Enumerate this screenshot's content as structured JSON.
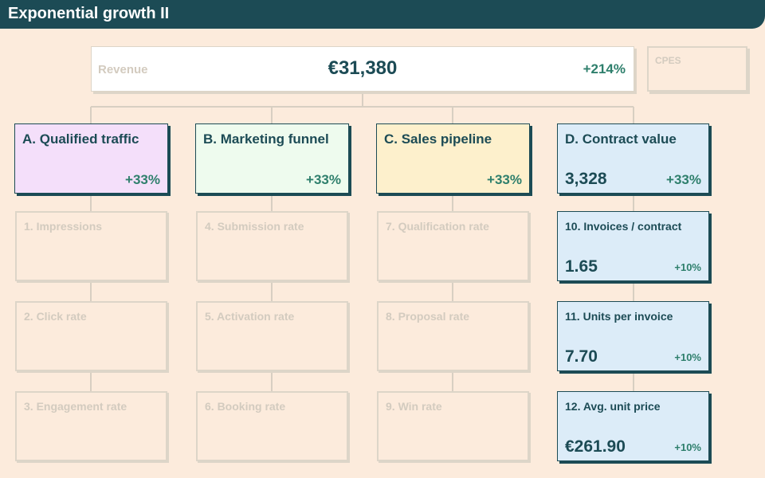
{
  "header": {
    "title": "Exponential growth II"
  },
  "revenue": {
    "label": "Revenue",
    "value": "€31,380",
    "change": "+214%"
  },
  "cpes": {
    "label": "CPES"
  },
  "columns": [
    {
      "title": "A. Qualified traffic",
      "change": "+33%",
      "value": "",
      "color": "#f4dffa",
      "items": [
        "1. Impressions",
        "2. Click rate",
        "3. Engagement rate"
      ]
    },
    {
      "title": "B. Marketing funnel",
      "change": "+33%",
      "value": "",
      "color": "#eefbee",
      "items": [
        "4. Submission rate",
        "5. Activation rate",
        "6. Booking rate"
      ]
    },
    {
      "title": "C. Sales pipeline",
      "change": "+33%",
      "value": "",
      "color": "#fdf0cc",
      "items": [
        "7. Qualification rate",
        "8. Proposal rate",
        "9. Win rate"
      ]
    },
    {
      "title": "D. Contract value",
      "change": "+33%",
      "value": "3,328",
      "color": "#dcecf8",
      "items": [
        {
          "label": "10. Invoices / contract",
          "value": "1.65",
          "change": "+10%"
        },
        {
          "label": "11. Units per invoice",
          "value": "7.70",
          "change": "+10%"
        },
        {
          "label": "12. Avg. unit price",
          "value": "€261.90",
          "change": "+10%"
        }
      ]
    }
  ]
}
